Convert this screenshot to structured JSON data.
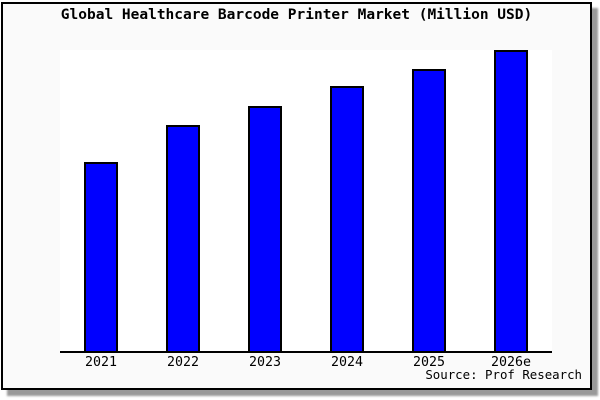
{
  "window": {
    "background_color": "#fafafa",
    "plot_background_color": "#ffffff",
    "frame_border_color": "#000000",
    "shadow_color": "#999999"
  },
  "chart_data": {
    "type": "bar",
    "title": "Global Healthcare Barcode Printer Market (Million USD)",
    "categories": [
      "2021",
      "2022",
      "2023",
      "2024",
      "2025",
      "2026e"
    ],
    "values": [
      62.8,
      75.2,
      81.5,
      88.0,
      93.7,
      100
    ],
    "value_scale_note": "No y-axis or data labels shown in chart; values are relative bar heights as % of tallest bar (2026e = 100)",
    "xlabel": "",
    "ylabel": "",
    "ylim": [
      0,
      100
    ],
    "grid": false,
    "legend": "none",
    "bar_color": "#0000ff",
    "bar_border_color": "#000000",
    "source": "Source: Prof Research"
  }
}
